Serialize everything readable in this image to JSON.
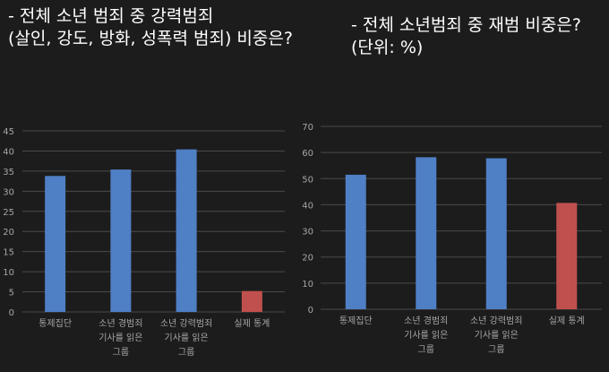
{
  "titles": {
    "left_line1": "- 전체 소년 범죄 중 강력범죄",
    "left_line2": "(살인, 강도, 방화, 성폭력 범죄) 비중은?",
    "right_line1": "- 전체 소년범죄 중 재범 비중은?",
    "right_line2": "(단위: %)"
  },
  "chart_data": [
    {
      "type": "bar",
      "title": "- 전체 소년 범죄 중 강력범죄 (살인, 강도, 방화, 성폭력 범죄) 비중은?",
      "categories": [
        [
          "통제집단"
        ],
        [
          "소년 경범죄",
          "기사를 읽은",
          "그룹"
        ],
        [
          "소년 강력범죄",
          "기사를 읽은",
          "그룹"
        ],
        [
          "실제 통계"
        ]
      ],
      "values": [
        33.8,
        35.4,
        40.4,
        5.2
      ],
      "colors": [
        "#4f7fc4",
        "#4f7fc4",
        "#4f7fc4",
        "#c0504d"
      ],
      "ylim": [
        0,
        45
      ],
      "yticks": [
        0,
        5,
        10,
        15,
        20,
        25,
        30,
        35,
        40,
        45
      ],
      "grid": true,
      "xlabel": "",
      "ylabel": ""
    },
    {
      "type": "bar",
      "title": "- 전체 소년범죄 중 재범 비중은? (단위: %)",
      "categories": [
        [
          "통제집단"
        ],
        [
          "소년 경범죄",
          "기사를 읽은",
          "그룹"
        ],
        [
          "소년 강력범죄",
          "기사를 읽은",
          "그룹"
        ],
        [
          "실제 통계"
        ]
      ],
      "values": [
        51.5,
        58.2,
        57.8,
        40.7
      ],
      "colors": [
        "#4f7fc4",
        "#4f7fc4",
        "#4f7fc4",
        "#c0504d"
      ],
      "ylim": [
        0,
        70
      ],
      "yticks": [
        0,
        10,
        20,
        30,
        40,
        50,
        60,
        70
      ],
      "grid": true,
      "xlabel": "",
      "ylabel": ""
    }
  ]
}
